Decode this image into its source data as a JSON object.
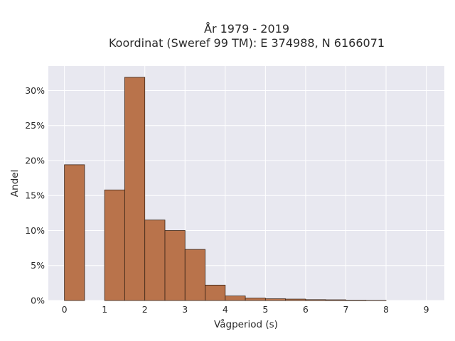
{
  "chart_data": {
    "type": "bar",
    "title_lines": [
      "År 1979 - 2019",
      "Koordinat (Sweref 99 TM): E 374988, N 6166071"
    ],
    "xlabel": "Vågperiod (s)",
    "ylabel": "Andel",
    "xlim": [
      -0.4,
      9.45
    ],
    "ylim": [
      0,
      33.5
    ],
    "x_ticks": [
      0,
      1,
      2,
      3,
      4,
      5,
      6,
      7,
      8,
      9
    ],
    "y_ticks": [
      0,
      5,
      10,
      15,
      20,
      25,
      30
    ],
    "y_tick_suffix": "%",
    "bin_width": 0.5,
    "bins": [
      {
        "start": 0.0,
        "value": 19.4
      },
      {
        "start": 0.5,
        "value": 0.0
      },
      {
        "start": 1.0,
        "value": 15.8
      },
      {
        "start": 1.5,
        "value": 31.9
      },
      {
        "start": 2.0,
        "value": 11.5
      },
      {
        "start": 2.5,
        "value": 10.0
      },
      {
        "start": 3.0,
        "value": 7.3
      },
      {
        "start": 3.5,
        "value": 2.2
      },
      {
        "start": 4.0,
        "value": 0.65
      },
      {
        "start": 4.5,
        "value": 0.35
      },
      {
        "start": 5.0,
        "value": 0.25
      },
      {
        "start": 5.5,
        "value": 0.2
      },
      {
        "start": 6.0,
        "value": 0.12
      },
      {
        "start": 6.5,
        "value": 0.1
      },
      {
        "start": 7.0,
        "value": 0.05
      },
      {
        "start": 7.5,
        "value": 0.03
      }
    ],
    "grid": true,
    "colors": {
      "bar_fill": "#b9734b",
      "bar_stroke": "#3a2416",
      "plot_bg": "#e8e8f0",
      "grid": "#ffffff"
    }
  }
}
